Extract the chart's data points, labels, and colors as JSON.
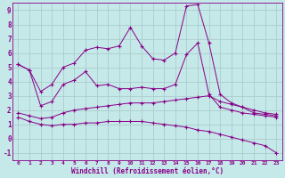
{
  "xlabel": "Windchill (Refroidissement éolien,°C)",
  "bg_color": "#c5e8e8",
  "line_color": "#880088",
  "grid_color": "#aacccc",
  "xlim": [
    -0.5,
    23.5
  ],
  "ylim": [
    -1.5,
    9.5
  ],
  "xticks": [
    0,
    1,
    2,
    3,
    4,
    5,
    6,
    7,
    8,
    9,
    10,
    11,
    12,
    13,
    14,
    15,
    16,
    17,
    18,
    19,
    20,
    21,
    22,
    23
  ],
  "yticks": [
    -1,
    0,
    1,
    2,
    3,
    4,
    5,
    6,
    7,
    8,
    9
  ],
  "line_top_x": [
    0,
    1,
    2,
    3,
    4,
    5,
    6,
    7,
    8,
    9,
    10,
    11,
    12,
    13,
    14,
    15,
    16,
    17,
    18,
    19,
    20,
    21,
    22,
    23
  ],
  "line_top_y": [
    5.2,
    4.8,
    3.3,
    3.8,
    5.0,
    5.3,
    6.2,
    6.4,
    6.3,
    6.5,
    7.8,
    6.5,
    5.6,
    5.5,
    6.0,
    9.3,
    9.4,
    6.7,
    3.1,
    2.5,
    2.2,
    1.8,
    1.7,
    1.6
  ],
  "line_mid_x": [
    0,
    1,
    2,
    3,
    4,
    5,
    6,
    7,
    8,
    9,
    10,
    11,
    12,
    13,
    14,
    15,
    16,
    17,
    18,
    19,
    20,
    21,
    22,
    23
  ],
  "line_mid_y": [
    5.2,
    4.8,
    2.3,
    2.6,
    3.8,
    4.1,
    4.7,
    3.7,
    3.8,
    3.5,
    3.5,
    3.6,
    3.5,
    3.5,
    3.8,
    5.9,
    6.7,
    3.1,
    2.2,
    2.0,
    1.8,
    1.7,
    1.6,
    1.5
  ],
  "line_lo1_x": [
    0,
    1,
    2,
    3,
    4,
    5,
    6,
    7,
    8,
    9,
    10,
    11,
    12,
    13,
    14,
    15,
    16,
    17,
    18,
    19,
    20,
    21,
    22,
    23
  ],
  "line_lo1_y": [
    1.8,
    1.6,
    1.4,
    1.5,
    1.8,
    2.0,
    2.1,
    2.2,
    2.3,
    2.4,
    2.5,
    2.5,
    2.5,
    2.6,
    2.7,
    2.8,
    2.9,
    3.0,
    2.6,
    2.4,
    2.2,
    2.0,
    1.8,
    1.7
  ],
  "line_lo2_x": [
    0,
    1,
    2,
    3,
    4,
    5,
    6,
    7,
    8,
    9,
    10,
    11,
    12,
    13,
    14,
    15,
    16,
    17,
    18,
    19,
    20,
    21,
    22,
    23
  ],
  "line_lo2_y": [
    1.5,
    1.2,
    1.0,
    0.9,
    1.0,
    1.0,
    1.1,
    1.1,
    1.2,
    1.2,
    1.2,
    1.2,
    1.1,
    1.0,
    0.9,
    0.8,
    0.6,
    0.5,
    0.3,
    0.1,
    -0.1,
    -0.3,
    -0.5,
    -1.0
  ]
}
